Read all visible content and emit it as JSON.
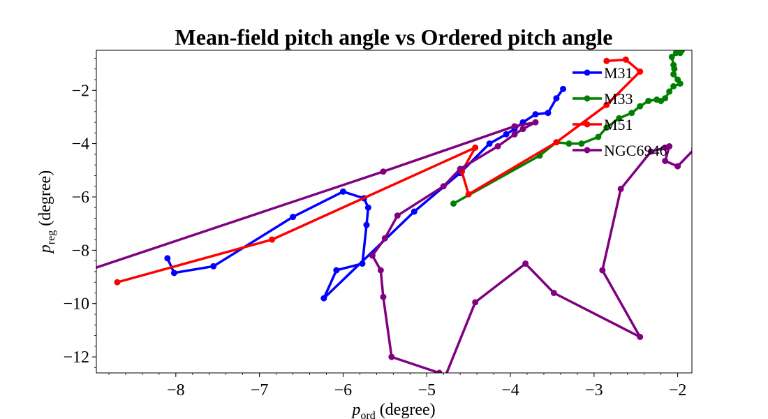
{
  "chart_data": {
    "type": "line",
    "title": "Mean-field pitch angle vs Ordered pitch angle",
    "xlabel": {
      "base": "p",
      "sub": "ord",
      "unit": " (degree)"
    },
    "ylabel": {
      "base": "p",
      "sub": "reg",
      "unit": " (degree)"
    },
    "xlim": [
      -8.95,
      -1.83
    ],
    "ylim": [
      -12.6,
      -0.5
    ],
    "xticks": [
      -8,
      -7,
      -6,
      -5,
      -4,
      -3,
      -2
    ],
    "yticks": [
      -12,
      -10,
      -8,
      -6,
      -4,
      -2
    ],
    "tick_label_format": "unicode-minus",
    "legend_position": "upper-right",
    "series": [
      {
        "name": "M31",
        "color": "#0000ff",
        "points": [
          [
            -8.1,
            -8.3
          ],
          [
            -8.02,
            -8.85
          ],
          [
            -7.55,
            -8.6
          ],
          [
            -6.6,
            -6.75
          ],
          [
            -6.0,
            -5.8
          ],
          [
            -5.75,
            -6.05
          ],
          [
            -5.7,
            -6.4
          ],
          [
            -5.72,
            -7.05
          ],
          [
            -5.77,
            -8.5
          ],
          [
            -6.08,
            -8.75
          ],
          [
            -6.23,
            -9.8
          ],
          [
            -5.15,
            -6.55
          ],
          [
            -4.6,
            -5.1
          ],
          [
            -4.25,
            -4.0
          ],
          [
            -4.05,
            -3.65
          ],
          [
            -3.95,
            -3.45
          ],
          [
            -3.85,
            -3.2
          ],
          [
            -3.7,
            -2.9
          ],
          [
            -3.55,
            -2.85
          ],
          [
            -3.45,
            -2.3
          ],
          [
            -3.37,
            -1.95
          ]
        ]
      },
      {
        "name": "M33",
        "color": "#008000",
        "points": [
          [
            -4.68,
            -6.25
          ],
          [
            -3.65,
            -4.45
          ],
          [
            -3.45,
            -3.95
          ],
          [
            -3.3,
            -4.0
          ],
          [
            -3.15,
            -4.0
          ],
          [
            -2.95,
            -3.75
          ],
          [
            -2.85,
            -3.4
          ],
          [
            -2.7,
            -3.05
          ],
          [
            -2.55,
            -2.85
          ],
          [
            -2.45,
            -2.6
          ],
          [
            -2.35,
            -2.4
          ],
          [
            -2.25,
            -2.35
          ],
          [
            -2.2,
            -2.4
          ],
          [
            -2.15,
            -2.3
          ],
          [
            -2.1,
            -2.05
          ],
          [
            -2.05,
            -1.85
          ],
          [
            -1.97,
            -1.75
          ],
          [
            -2.0,
            -1.6
          ],
          [
            -2.05,
            -1.4
          ],
          [
            -2.04,
            -1.2
          ],
          [
            -2.05,
            -1.05
          ],
          [
            -2.07,
            -0.75
          ],
          [
            -2.02,
            -0.6
          ],
          [
            -2.0,
            -0.5
          ],
          [
            -1.97,
            -0.6
          ],
          [
            -1.95,
            -0.5
          ]
        ]
      },
      {
        "name": "M51",
        "color": "#ff0000",
        "points": [
          [
            -8.7,
            -9.2
          ],
          [
            -6.85,
            -7.6
          ],
          [
            -4.42,
            -4.15
          ],
          [
            -4.58,
            -5.05
          ],
          [
            -4.5,
            -5.9
          ],
          [
            -3.45,
            -3.95
          ],
          [
            -2.85,
            -2.55
          ],
          [
            -2.45,
            -1.3
          ],
          [
            -2.62,
            -0.85
          ],
          [
            -2.85,
            -0.9
          ]
        ]
      },
      {
        "name": "NGC6946",
        "color": "#800080",
        "points": [
          [
            -9.0,
            -8.7
          ],
          [
            -5.52,
            -5.05
          ],
          [
            -3.95,
            -3.35
          ],
          [
            -3.7,
            -3.2
          ],
          [
            -3.85,
            -3.45
          ],
          [
            -3.95,
            -3.65
          ],
          [
            -4.15,
            -4.1
          ],
          [
            -4.6,
            -4.95
          ],
          [
            -4.8,
            -5.6
          ],
          [
            -5.35,
            -6.7
          ],
          [
            -5.5,
            -7.55
          ],
          [
            -5.65,
            -8.2
          ],
          [
            -5.55,
            -8.75
          ],
          [
            -5.52,
            -9.75
          ],
          [
            -5.42,
            -12.0
          ],
          [
            -4.85,
            -12.6
          ],
          [
            -4.8,
            -12.9
          ],
          [
            -4.42,
            -9.95
          ],
          [
            -3.82,
            -8.5
          ],
          [
            -3.48,
            -9.6
          ],
          [
            -2.45,
            -11.25
          ],
          [
            -2.9,
            -8.75
          ],
          [
            -2.68,
            -5.7
          ],
          [
            -2.32,
            -4.3
          ],
          [
            -2.15,
            -4.15
          ],
          [
            -2.1,
            -4.1
          ],
          [
            -2.15,
            -4.65
          ],
          [
            -2.0,
            -4.85
          ],
          [
            -1.8,
            -4.2
          ]
        ]
      }
    ]
  }
}
